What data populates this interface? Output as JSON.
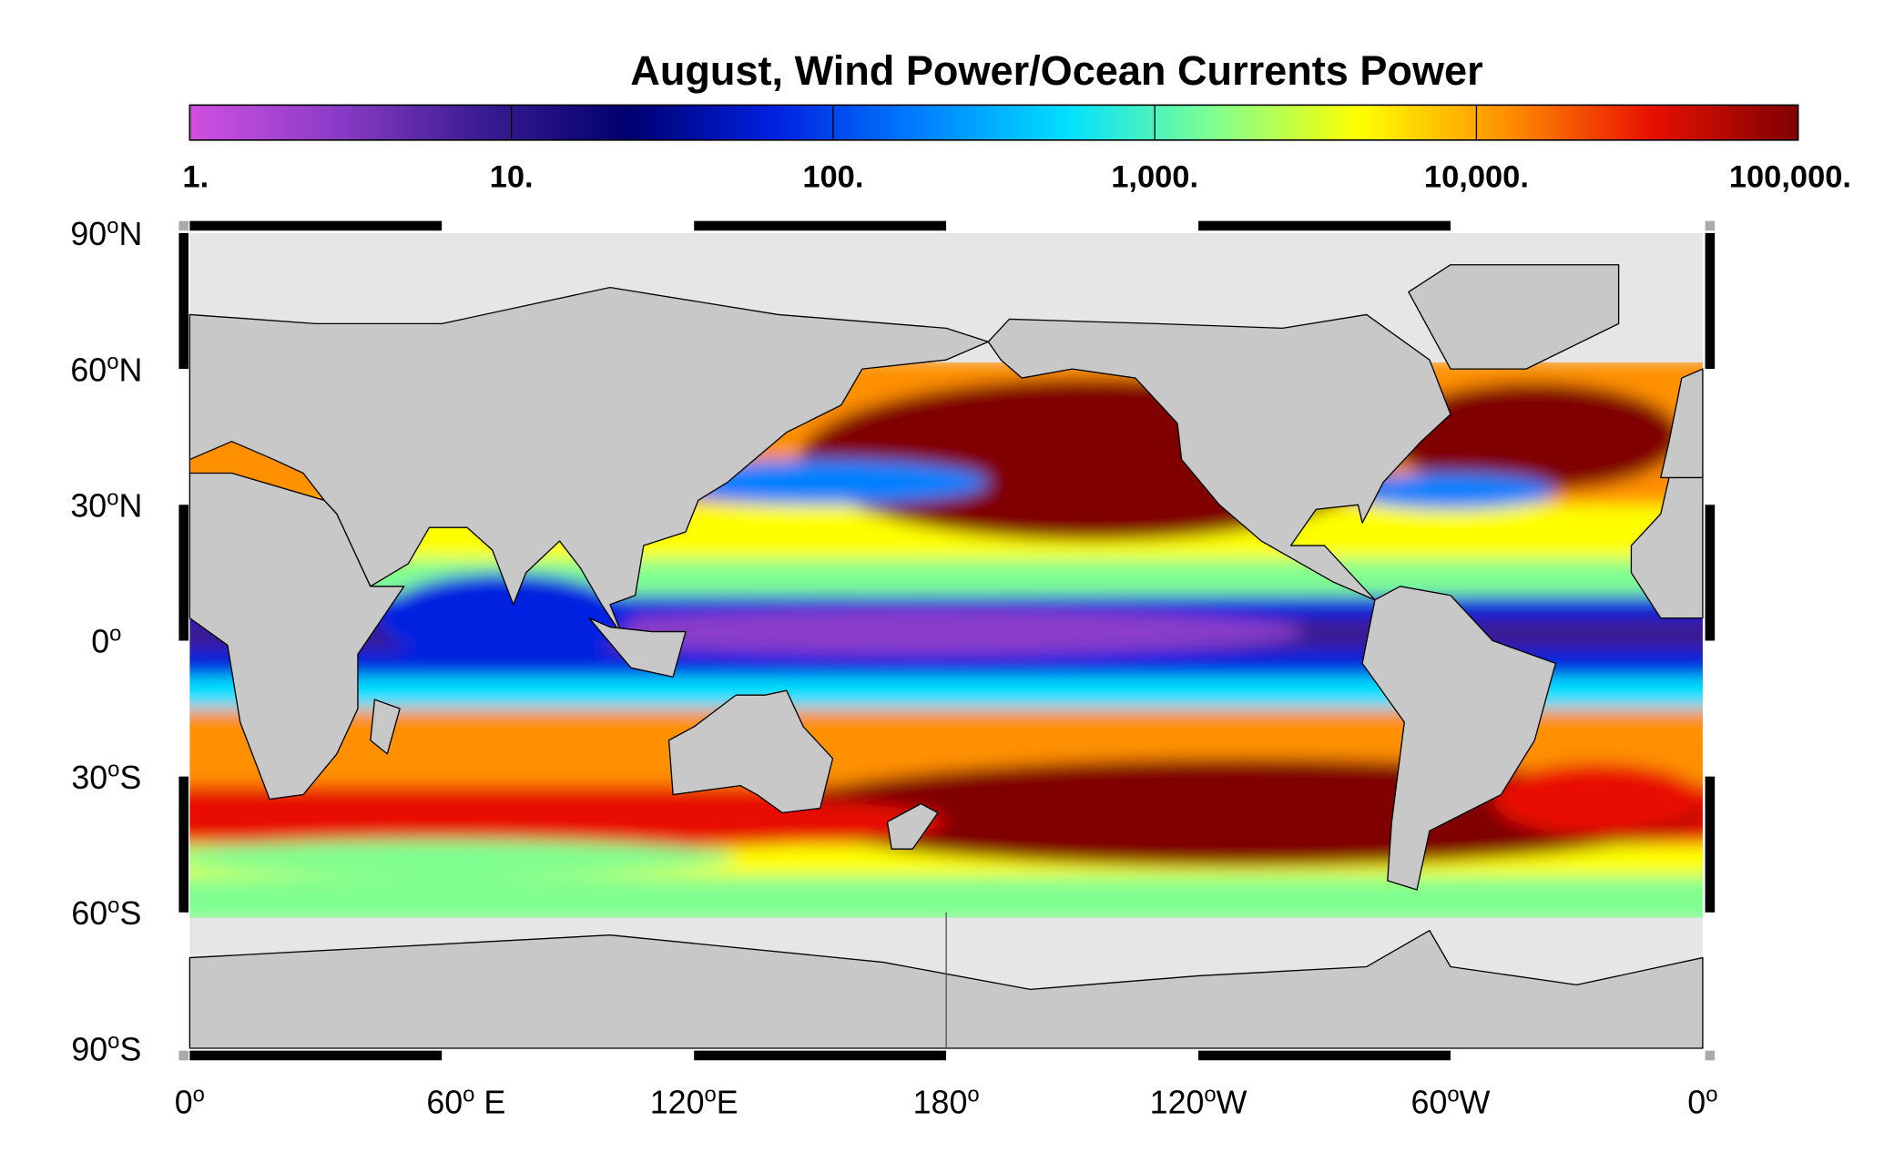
{
  "map": {
    "title": "August, Wind Power/Ocean Currents Power",
    "colorbar": {
      "scale": "log",
      "lim": [
        1,
        100000
      ],
      "ticks": [
        {
          "value": 1,
          "label": "1."
        },
        {
          "value": 10,
          "label": "10."
        },
        {
          "value": 100,
          "label": "100."
        },
        {
          "value": 1000,
          "label": "1,000."
        },
        {
          "value": 10000,
          "label": "10,000."
        },
        {
          "value": 100000,
          "label": "100,000."
        }
      ],
      "colors": [
        "#d050e0",
        "#8a3cc8",
        "#3a1c92",
        "#00006e",
        "#0020e0",
        "#0080ff",
        "#00e0ff",
        "#80ff90",
        "#ffff00",
        "#ff9000",
        "#e81000",
        "#800000"
      ]
    },
    "degree_mark": "o",
    "lat_labels": [
      {
        "text": "90",
        "suffix": "N"
      },
      {
        "text": "60",
        "suffix": "N"
      },
      {
        "text": "30",
        "suffix": "N"
      },
      {
        "text": "0"
      },
      {
        "text": "30",
        "suffix": "S"
      },
      {
        "text": "60",
        "suffix": "S"
      },
      {
        "text": "90",
        "suffix": "S"
      }
    ],
    "lon_labels": [
      {
        "text": "0"
      },
      {
        "text": "60",
        "suffix": " E"
      },
      {
        "text": "120",
        "suffix": "E"
      },
      {
        "text": "180"
      },
      {
        "text": "120",
        "suffix": "W"
      },
      {
        "text": "60",
        "suffix": "W"
      },
      {
        "text": "0"
      }
    ]
  }
}
